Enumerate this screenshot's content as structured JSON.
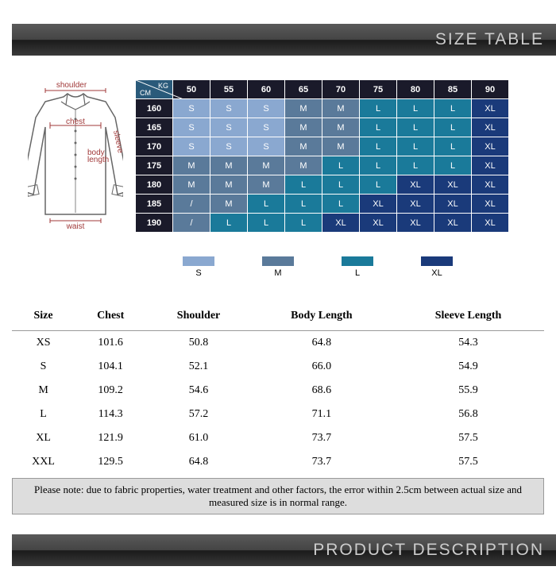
{
  "banners": {
    "size_table": "SIZE TABLE",
    "product_desc": "PRODUCT DESCRIPTION"
  },
  "diagram": {
    "labels": {
      "shoulder": "shoulder",
      "chest": "chest",
      "sleeve": "sleeve",
      "body_length": "body length",
      "waist": "waist"
    },
    "line_color": "#a03838",
    "shirt_stroke": "#666"
  },
  "grid": {
    "corner": {
      "kg": "KG",
      "cm": "CM"
    },
    "kg_headers": [
      "50",
      "55",
      "60",
      "65",
      "70",
      "75",
      "80",
      "85",
      "90"
    ],
    "cm_headers": [
      "160",
      "165",
      "170",
      "175",
      "180",
      "185",
      "190"
    ],
    "cells": [
      [
        "S",
        "S",
        "S",
        "M",
        "M",
        "L",
        "L",
        "L",
        "XL"
      ],
      [
        "S",
        "S",
        "S",
        "M",
        "M",
        "L",
        "L",
        "L",
        "XL"
      ],
      [
        "S",
        "S",
        "S",
        "M",
        "M",
        "L",
        "L",
        "L",
        "XL"
      ],
      [
        "M",
        "M",
        "M",
        "M",
        "L",
        "L",
        "L",
        "L",
        "XL"
      ],
      [
        "M",
        "M",
        "M",
        "L",
        "L",
        "L",
        "XL",
        "XL",
        "XL"
      ],
      [
        "/",
        "M",
        "L",
        "L",
        "L",
        "XL",
        "XL",
        "XL",
        "XL"
      ],
      [
        "/",
        "L",
        "L",
        "L",
        "XL",
        "XL",
        "XL",
        "XL",
        "XL"
      ]
    ],
    "colors": {
      "S": "#8aa8d0",
      "M": "#5a7a9a",
      "L": "#1a7a9a",
      "XL": "#1a3a7a",
      "/": "#5a7a9a"
    }
  },
  "legend": [
    {
      "label": "S",
      "color": "#8aa8d0"
    },
    {
      "label": "M",
      "color": "#5a7a9a"
    },
    {
      "label": "L",
      "color": "#1a7a9a"
    },
    {
      "label": "XL",
      "color": "#1a3a7a"
    }
  ],
  "measure": {
    "columns": [
      "Size",
      "Chest",
      "Shoulder",
      "Body Length",
      "Sleeve Length"
    ],
    "rows": [
      [
        "XS",
        "101.6",
        "50.8",
        "64.8",
        "54.3"
      ],
      [
        "S",
        "104.1",
        "52.1",
        "66.0",
        "54.9"
      ],
      [
        "M",
        "109.2",
        "54.6",
        "68.6",
        "55.9"
      ],
      [
        "L",
        "114.3",
        "57.2",
        "71.1",
        "56.8"
      ],
      [
        "XL",
        "121.9",
        "61.0",
        "73.7",
        "57.5"
      ],
      [
        "XXL",
        "129.5",
        "64.8",
        "73.7",
        "57.5"
      ]
    ]
  },
  "note": "Please note: due to fabric properties, water treatment and other factors, the error within 2.5cm between actual size and measured size is in normal range."
}
